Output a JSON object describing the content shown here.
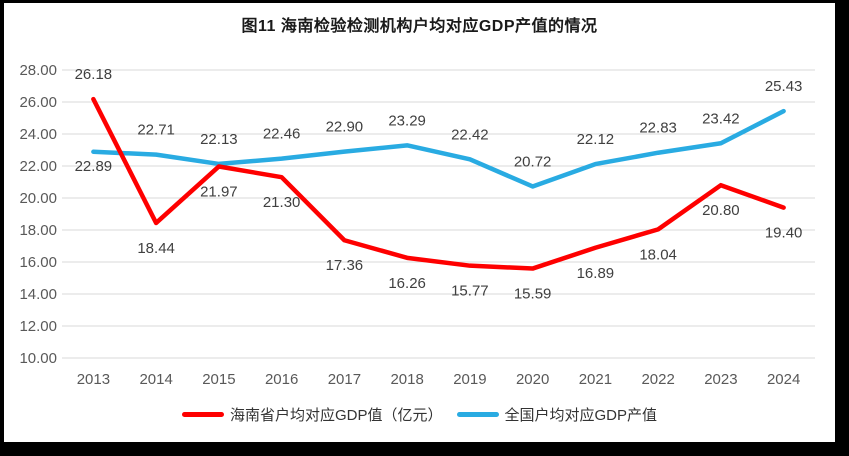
{
  "chart_data": {
    "type": "line",
    "title": "图11 海南检验检测机构户均对应GDP产值的情况",
    "categories": [
      "2013",
      "2014",
      "2015",
      "2016",
      "2017",
      "2018",
      "2019",
      "2020",
      "2021",
      "2022",
      "2023",
      "2024"
    ],
    "series": [
      {
        "name": "海南省户均对应GDP值（亿元）",
        "color": "#FE0000",
        "values": [
          26.18,
          18.44,
          21.97,
          21.3,
          17.36,
          16.26,
          15.77,
          15.59,
          16.89,
          18.04,
          20.8,
          19.4
        ],
        "label_sides": [
          "above",
          "below",
          "below",
          "below",
          "below",
          "below",
          "below",
          "below",
          "below",
          "below",
          "below",
          "below"
        ]
      },
      {
        "name": "全国户均对应GDP产值",
        "color": "#29ABE2",
        "values": [
          22.89,
          22.71,
          22.13,
          22.46,
          22.9,
          23.29,
          22.42,
          20.72,
          22.12,
          22.83,
          23.42,
          25.43
        ],
        "label_sides": [
          "below-near",
          "above",
          "above",
          "above",
          "above",
          "above",
          "above",
          "above",
          "above",
          "above",
          "above",
          "above"
        ]
      }
    ],
    "ylim": [
      10,
      28
    ],
    "ytick_step": 2,
    "ytick_decimals": 2,
    "value_label_decimals": 2,
    "grid": true,
    "legend_position": "bottom",
    "colors": {
      "gridline": "#D9D9D9",
      "axis_text": "#595959",
      "data_label_text": "#404040",
      "frame_border": "#000000",
      "background": "#FFFFFF"
    }
  }
}
